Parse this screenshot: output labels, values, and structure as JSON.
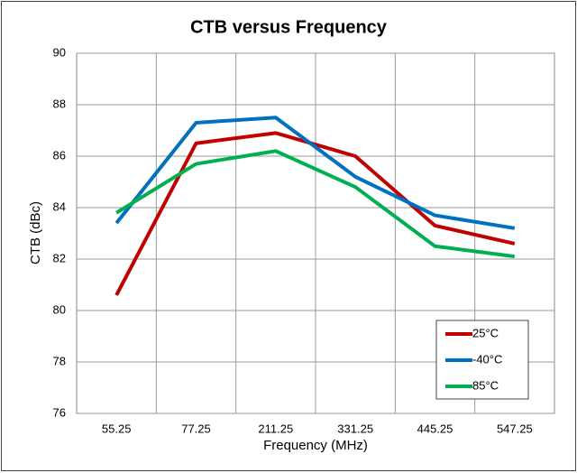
{
  "chart_data": {
    "type": "line",
    "title": "CTB versus Frequency",
    "x_label": "Frequency (MHz)",
    "y_label": "CTB (dBc)",
    "categories": [
      "55.25",
      "77.25",
      "211.25",
      "331.25",
      "445.25",
      "547.25"
    ],
    "series": [
      {
        "name": "25°C",
        "color": "#c00000",
        "values": [
          80.6,
          86.5,
          86.9,
          86.0,
          83.3,
          82.6
        ]
      },
      {
        "name": "-40°C",
        "color": "#0070c0",
        "values": [
          83.4,
          87.3,
          87.5,
          85.2,
          83.7,
          83.2
        ]
      },
      {
        "name": "85°C",
        "color": "#00b050",
        "values": [
          83.8,
          85.7,
          86.2,
          84.8,
          82.5,
          82.1
        ]
      }
    ],
    "ylim": [
      76,
      90
    ],
    "yticks": [
      76,
      78,
      80,
      82,
      84,
      86,
      88,
      90
    ],
    "grid": true,
    "legend": "lower right"
  }
}
